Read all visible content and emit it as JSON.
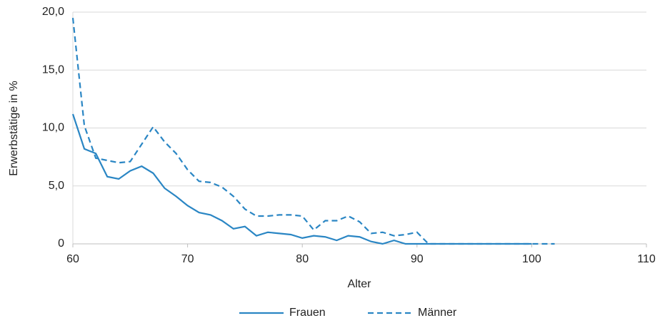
{
  "chart_data": {
    "type": "line",
    "x_label": "Alter",
    "y_label": "Erwerbstätige in %",
    "x": [
      60,
      61,
      62,
      63,
      64,
      65,
      66,
      67,
      68,
      69,
      70,
      71,
      72,
      73,
      74,
      75,
      76,
      77,
      78,
      79,
      80,
      81,
      82,
      83,
      84,
      85,
      86,
      87,
      88,
      89,
      90,
      91,
      92,
      93,
      94,
      95,
      96,
      97,
      98,
      99,
      100,
      101,
      102
    ],
    "series": [
      {
        "name": "Frauen",
        "color": "#2a86c4",
        "dashed": false,
        "values": [
          11.2,
          8.2,
          7.8,
          5.8,
          5.6,
          6.3,
          6.7,
          6.1,
          4.8,
          4.1,
          3.3,
          2.7,
          2.5,
          2.0,
          1.3,
          1.5,
          0.7,
          1.0,
          0.9,
          0.8,
          0.5,
          0.7,
          0.6,
          0.3,
          0.7,
          0.6,
          0.2,
          0.0,
          0.3,
          0.0,
          0,
          0,
          0,
          0,
          0,
          0,
          0,
          0,
          0,
          0,
          0,
          null,
          null
        ]
      },
      {
        "name": "Männer",
        "color": "#2a86c4",
        "dashed": true,
        "values": [
          19.5,
          10.2,
          7.4,
          7.2,
          7.0,
          7.1,
          8.6,
          10.1,
          8.8,
          7.8,
          6.4,
          5.4,
          5.3,
          4.9,
          4.1,
          3.0,
          2.4,
          2.4,
          2.5,
          2.5,
          2.4,
          1.2,
          2.0,
          2.0,
          2.4,
          1.9,
          0.9,
          1.0,
          0.7,
          0.8,
          1.0,
          0,
          0,
          0,
          0,
          0,
          0,
          0,
          0,
          0,
          0,
          0,
          0
        ]
      }
    ],
    "xlim": [
      60,
      110
    ],
    "xticks": [
      60,
      70,
      80,
      90,
      100,
      110
    ],
    "ylim": [
      0,
      20
    ],
    "yticks": [
      0,
      {
        "value": 5,
        "label": "5,0"
      },
      {
        "value": 10,
        "label": "10,0"
      },
      {
        "value": 15,
        "label": "15,0"
      },
      {
        "value": 20,
        "label": "20,0"
      }
    ],
    "grid": true,
    "legend": "bottom"
  }
}
